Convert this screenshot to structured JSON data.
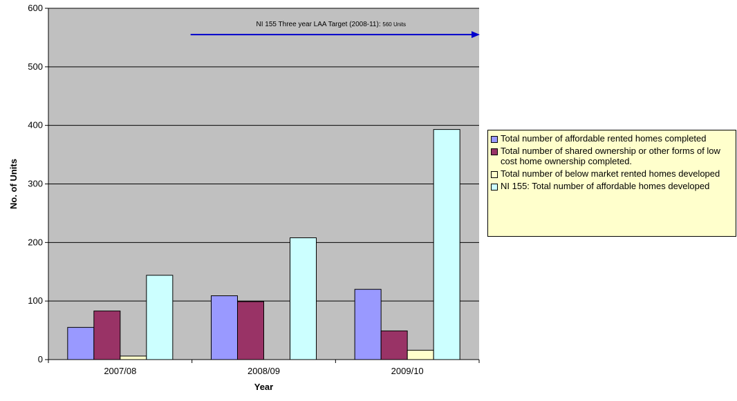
{
  "chart_data": {
    "type": "bar",
    "xlabel": "Year",
    "ylabel": "No. of Units",
    "ylim": [
      0,
      600
    ],
    "yticks": [
      0,
      100,
      200,
      300,
      400,
      500,
      600
    ],
    "grid": true,
    "legend_position": "right",
    "categories": [
      "2007/08",
      "2008/09",
      "2009/10"
    ],
    "series": [
      {
        "name": "Total number of affordable rented homes completed",
        "color": "#9999ff",
        "values": [
          55,
          109,
          120
        ]
      },
      {
        "name": "Total number of shared ownership or other forms of low cost home ownership completed.",
        "color": "#993366",
        "values": [
          83,
          99,
          49
        ]
      },
      {
        "name": "Total number of below market rented homes developed",
        "color": "#ffffcc",
        "values": [
          6,
          0,
          16
        ]
      },
      {
        "name": "NI 155: Total number of affordable homes developed",
        "color": "#ccffff",
        "values": [
          144,
          208,
          393
        ]
      }
    ],
    "annotation": {
      "text": "NI 155 Three year LAA Target (2008-11): ",
      "unit_text": "560 Units",
      "value": 555,
      "from_category_boundary": 1,
      "arrow_color": "#0000cc"
    },
    "colors": {
      "plot_background": "#c0c0c0",
      "gridline": "#000000",
      "legend_background": "#ffffcc"
    }
  }
}
